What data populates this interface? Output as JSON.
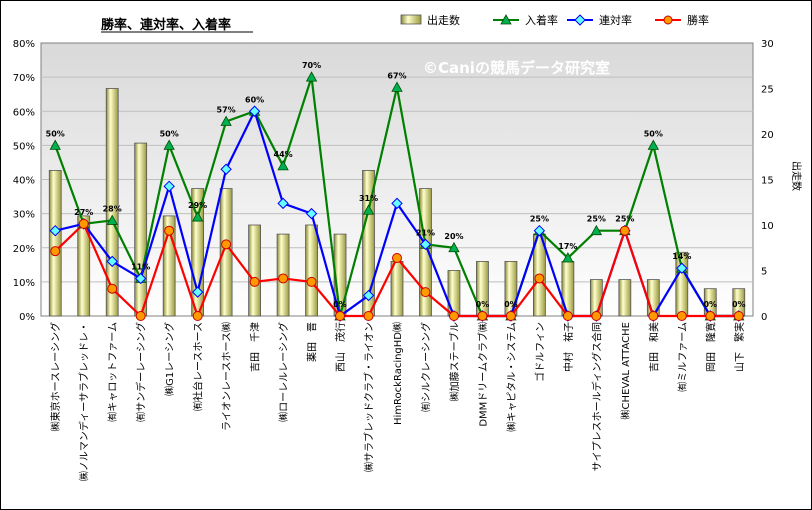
{
  "chart_data": {
    "type": "bar",
    "title": "勝率、連対率、入着率",
    "watermark": "©Caniの競馬データ研究室",
    "y2label": "出走数",
    "ylim": [
      0,
      80
    ],
    "y2lim": [
      0,
      30
    ],
    "yticks": [
      "0%",
      "10%",
      "20%",
      "30%",
      "40%",
      "50%",
      "60%",
      "70%",
      "80%"
    ],
    "y2ticks": [
      "0",
      "5",
      "10",
      "15",
      "20",
      "25",
      "30"
    ],
    "legend_position": "top",
    "categories": [
      "㈱東京ホースレーシング",
      "㈱ノルマンディーサラブレッドレ・",
      "㈲キャロットファーム",
      "㈲サンデーレーシング",
      "㈱G1レーシング",
      "㈲社台レースホース",
      "ライオンレースホース㈱",
      "吉田　千津",
      "㈱ローレルレーシング",
      "薬田　晋",
      "西山　茂行",
      "㈱サラブレッドクラブ・ライオン",
      "HimRockRacingHD㈱",
      "㈲シルクレーシング",
      "㈱加藤ステーブル",
      "DMMドリームクラブ㈱",
      "㈱キャピタル・システム",
      "ゴドルフィン",
      "中村　祐子",
      "サイプレスホールディングス合同",
      "㈱CHEVAL ATTACHE",
      "吉田　和美",
      "㈲ミルファーム",
      "岡田　隆寛",
      "山下　繁実"
    ],
    "series": [
      {
        "name": "出走数",
        "type": "bar",
        "axis": "right",
        "color": "#ffff99",
        "values": [
          16,
          11,
          25,
          19,
          11,
          14,
          14,
          10,
          9,
          10,
          9,
          16,
          6,
          14,
          5,
          6,
          6,
          9,
          6,
          4,
          4,
          4,
          7,
          3,
          3
        ]
      },
      {
        "name": "入着率",
        "type": "line",
        "axis": "left",
        "color": "#008000",
        "values": [
          50,
          27,
          28,
          11,
          50,
          29,
          57,
          60,
          44,
          70,
          0,
          31,
          67,
          21,
          20,
          0,
          0,
          25,
          17,
          25,
          25,
          50,
          14,
          0,
          0
        ]
      },
      {
        "name": "連対率",
        "type": "line",
        "axis": "left",
        "color": "#0000ff",
        "values": [
          25,
          27,
          16,
          11,
          38,
          7,
          43,
          60,
          33,
          30,
          0,
          6,
          33,
          21,
          0,
          0,
          0,
          25,
          0,
          0,
          25,
          0,
          14,
          0,
          0
        ]
      },
      {
        "name": "勝率",
        "type": "line",
        "axis": "left",
        "color": "#ff0000",
        "values": [
          19,
          27,
          8,
          0,
          25,
          0,
          21,
          10,
          11,
          10,
          0,
          0,
          17,
          7,
          0,
          0,
          0,
          11,
          0,
          0,
          25,
          0,
          0,
          0,
          0
        ]
      }
    ],
    "point_labels": [
      "50%",
      "27%",
      "28%",
      "11%",
      "50%",
      "29%",
      "57%",
      "60%",
      "44%",
      "70%",
      "0%",
      "31%",
      "67%",
      "21%",
      "20%",
      "0%",
      "0%",
      "25%",
      "17%",
      "25%",
      "25%",
      "50%",
      "14%",
      "0%",
      "0%"
    ]
  }
}
